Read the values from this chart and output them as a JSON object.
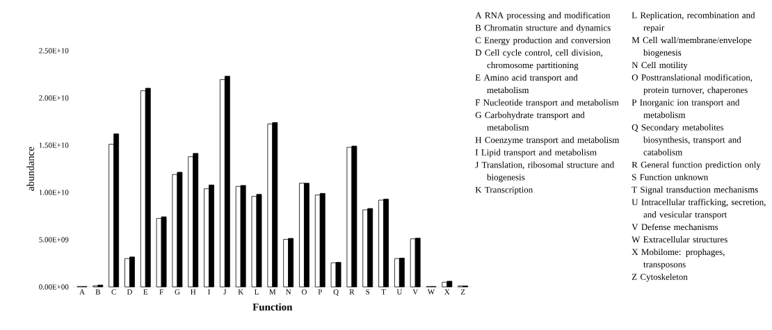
{
  "chart_data": {
    "type": "bar",
    "xlabel": "Function",
    "ylabel": "abundance",
    "categories": [
      "A",
      "B",
      "C",
      "D",
      "E",
      "F",
      "G",
      "H",
      "I",
      "J",
      "K",
      "L",
      "M",
      "N",
      "O",
      "P",
      "Q",
      "R",
      "S",
      "T",
      "U",
      "V",
      "W",
      "X",
      "Z"
    ],
    "series": [
      {
        "color": "#ffffff",
        "values": [
          50000000.0,
          120000000.0,
          15100000000.0,
          3000000000.0,
          20760000000.0,
          7250000000.0,
          11900000000.0,
          13780000000.0,
          10390000000.0,
          21940000000.0,
          10640000000.0,
          9580000000.0,
          17250000000.0,
          5040000000.0,
          10980000000.0,
          9730000000.0,
          2560000000.0,
          14770000000.0,
          8160000000.0,
          9190000000.0,
          3000000000.0,
          5090000000.0,
          50000000.0,
          500000000.0,
          100000000.0
        ]
      },
      {
        "color": "#000000",
        "values": [
          50000000.0,
          200000000.0,
          16200000000.0,
          3170000000.0,
          21030000000.0,
          7420000000.0,
          12140000000.0,
          14130000000.0,
          10790000000.0,
          22300000000.0,
          10740000000.0,
          9800000000.0,
          17400000000.0,
          5140000000.0,
          10980000000.0,
          9900000000.0,
          2600000000.0,
          14910000000.0,
          8300000000.0,
          9290000000.0,
          3050000000.0,
          5160000000.0,
          50000000.0,
          600000000.0,
          100000000.0
        ]
      }
    ],
    "ylim": [
      0,
      25000000000.0
    ],
    "yticks": [
      {
        "value": 0,
        "label": "0.00E+00"
      },
      {
        "value": 5000000000.0,
        "label": "5.00E+09"
      },
      {
        "value": 10000000000.0,
        "label": "1.00E+10"
      },
      {
        "value": 15000000000.0,
        "label": "1.50E+10"
      },
      {
        "value": 20000000000.0,
        "label": "2.00E+10"
      },
      {
        "value": 25000000000.0,
        "label": "2.50E+10"
      }
    ],
    "annotations": [
      "A RNA processing and modification",
      "B Chromatin structure and dynamics",
      "C Energy production and conversion",
      "D Cell cycle control, cell division, chromosome partitioning",
      "E Amino acid transport and metabolism",
      "F Nucleotide transport and metabolism",
      "G Carbohydrate transport and metabolism",
      "H Coenzyme transport and metabolism",
      "I Lipid transport and metabolism",
      "J Translation, ribosomal structure and biogenesis",
      "K Transcription",
      "L Replication, recombination and repair",
      "M Cell wall/membrane/envelope biogenesis",
      "N Cell motility",
      "O Posttranslational modification, protein turnover, chaperones",
      "P Inorganic ion transport and metabolism",
      "Q Secondary metabolites biosynthesis, transport and catabolism",
      "R General function prediction only",
      "S Function unknown",
      "T Signal transduction mechanisms",
      "U Intracellular trafficking, secretion, and vesicular transport",
      "V Defense mechanisms",
      "W Extracellular structures",
      "X Mobilome: prophages, transposons",
      "Z Cytoskeleton"
    ]
  }
}
